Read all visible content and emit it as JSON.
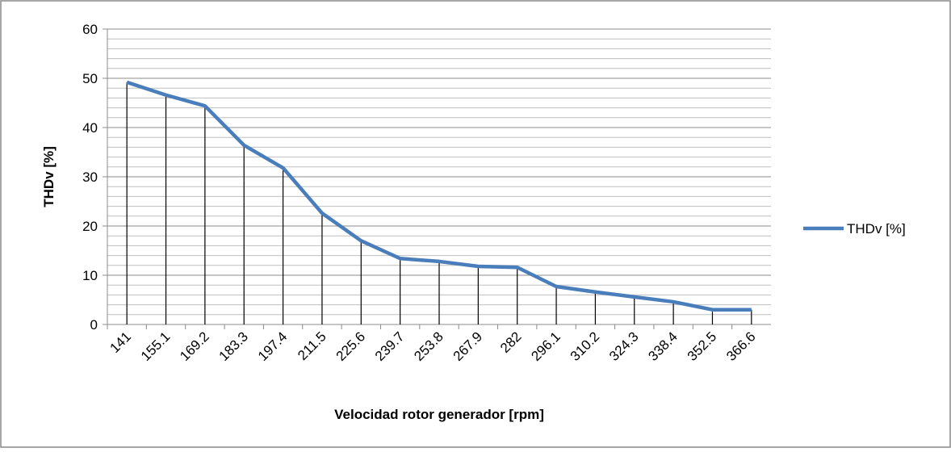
{
  "chart_data": {
    "type": "line",
    "x_label": "Velocidad rotor generador [rpm]",
    "y_label": "THDv [%]",
    "categories": [
      "141",
      "155.1",
      "169.2",
      "183.3",
      "197.4",
      "211.5",
      "225.6",
      "239.7",
      "253.8",
      "267.9",
      "282",
      "296.1",
      "310.2",
      "324.3",
      "338.4",
      "352.5",
      "366.6"
    ],
    "series": [
      {
        "name": "THDv [%]",
        "color": "#4a7ebb",
        "values": [
          49.2,
          46.6,
          44.4,
          36.4,
          31.8,
          22.6,
          17.0,
          13.4,
          12.8,
          11.8,
          11.6,
          7.7,
          6.6,
          5.6,
          4.6,
          3.0,
          3.0
        ]
      }
    ],
    "ylim": [
      0,
      60
    ],
    "yticks": [
      0,
      10,
      20,
      30,
      40,
      50,
      60
    ],
    "yticks_minor": [
      2,
      4,
      6,
      8,
      12,
      14,
      16,
      18,
      22,
      24,
      26,
      28,
      32,
      34,
      36,
      38,
      42,
      44,
      46,
      48,
      52,
      54,
      56,
      58
    ],
    "grid": true,
    "drop_lines": true,
    "legend": "right"
  }
}
